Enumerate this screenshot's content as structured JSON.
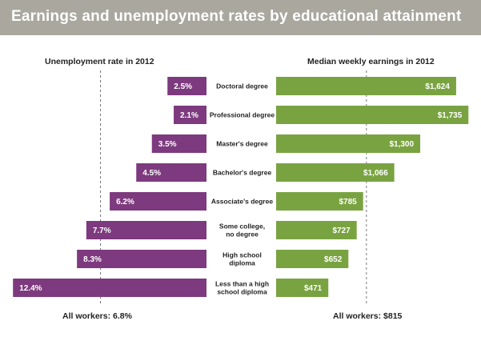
{
  "chart_data": {
    "type": "bar",
    "title": "Earnings and unemployment rates by educational attainment",
    "categories": [
      "Doctoral degree",
      "Professional degree",
      "Master's degree",
      "Bachelor's degree",
      "Associate's degree",
      "Some college,\nno degree",
      "High school\ndiploma",
      "Less than a high\nschool diploma"
    ],
    "series": [
      {
        "name": "Unemployment rate in 2012",
        "values": [
          2.5,
          2.1,
          3.5,
          4.5,
          6.2,
          7.7,
          8.3,
          12.4
        ],
        "labels": [
          "2.5%",
          "2.1%",
          "3.5%",
          "4.5%",
          "6.2%",
          "7.7%",
          "8.3%",
          "12.4%"
        ],
        "color": "#7d3a7e",
        "reference": 6.8,
        "reference_label": "All workers: 6.8%"
      },
      {
        "name": "Median weekly earnings in 2012",
        "values": [
          1624,
          1735,
          1300,
          1066,
          785,
          727,
          652,
          471
        ],
        "labels": [
          "$1,624",
          "$1,735",
          "$1,300",
          "$1,066",
          "$785",
          "$727",
          "$652",
          "$471"
        ],
        "color": "#79a341",
        "reference": 815,
        "reference_label": "All workers: $815"
      }
    ]
  }
}
